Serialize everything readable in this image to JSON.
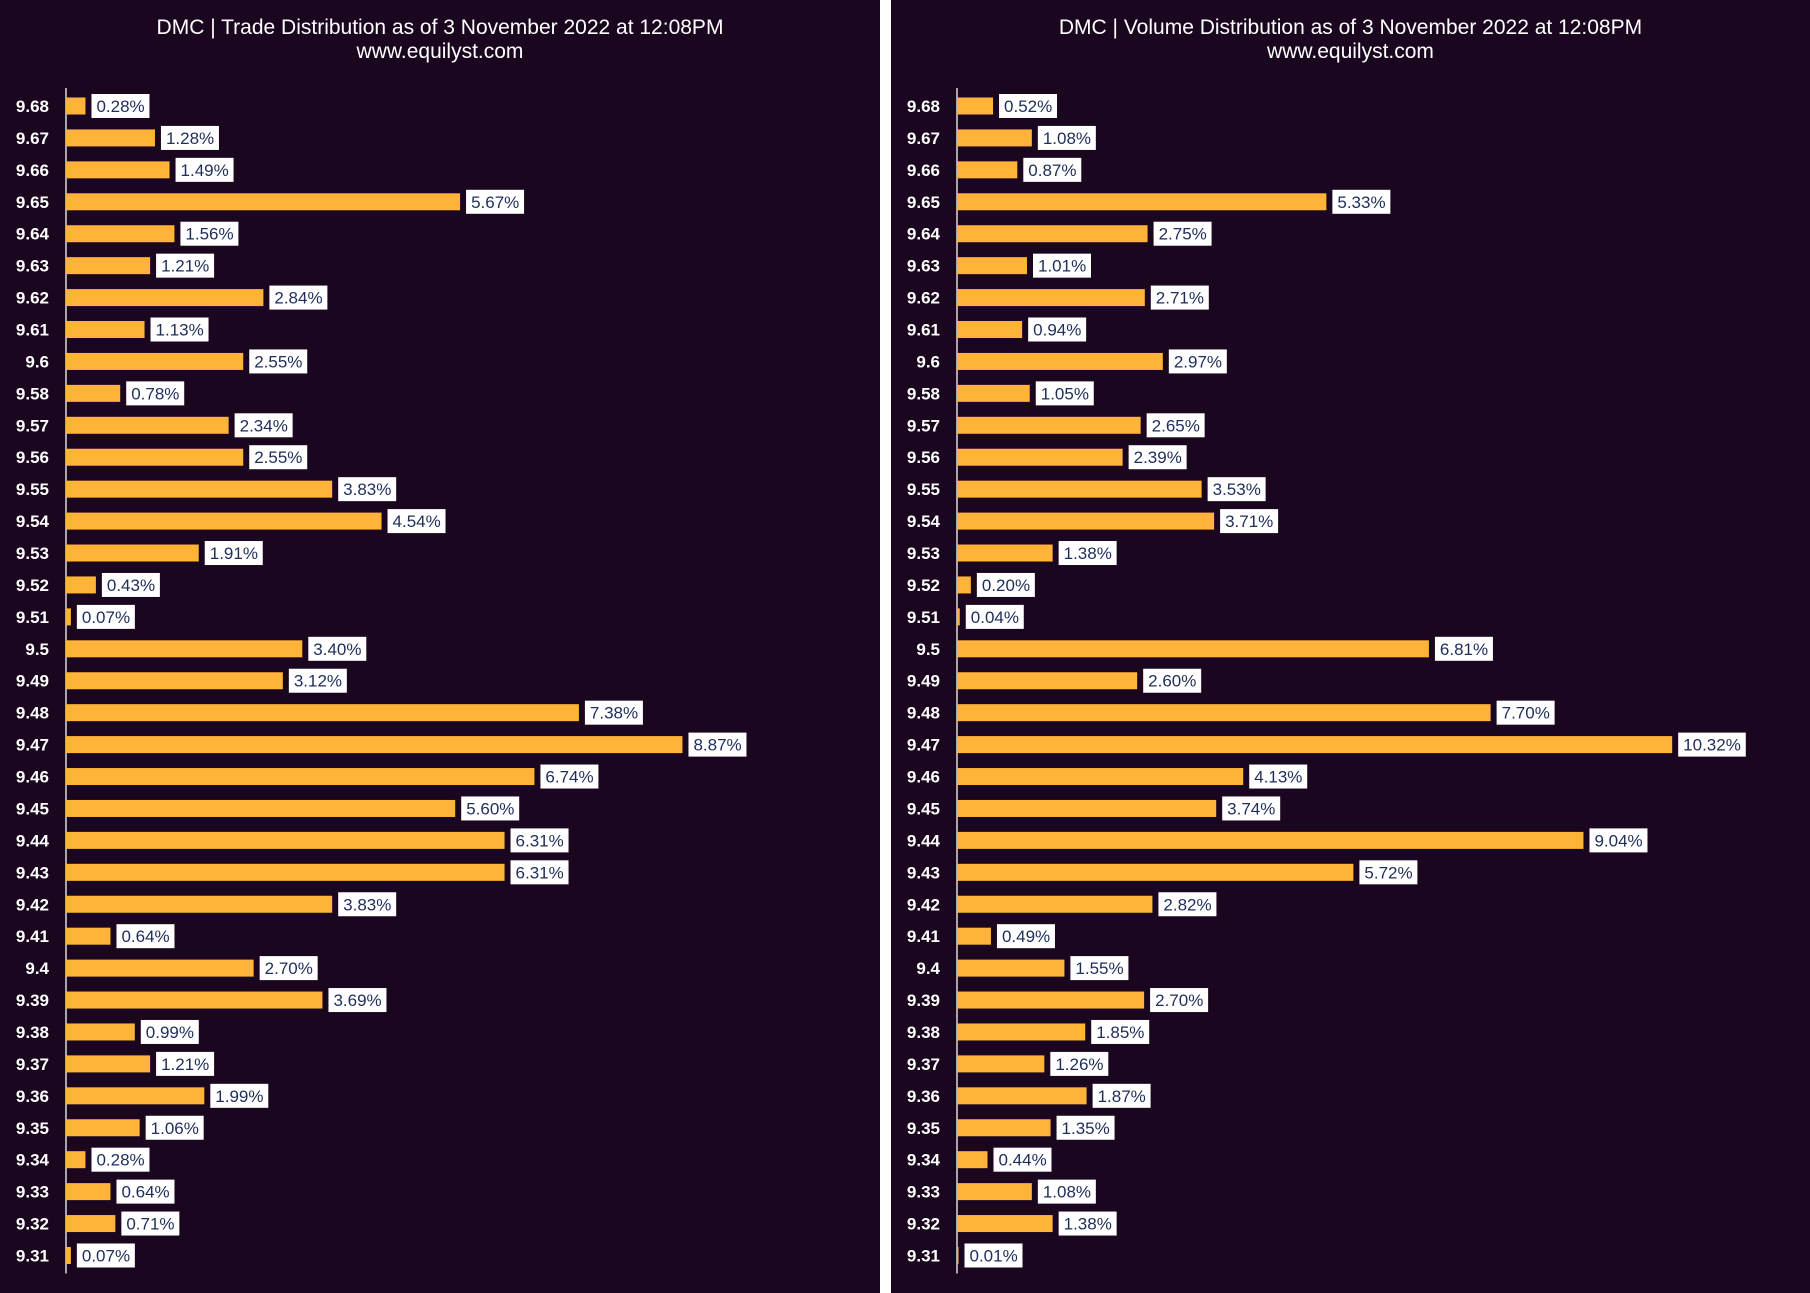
{
  "colors": {
    "background": "#1b0620",
    "bar": "#ffb338",
    "axis": "#d9d9d9",
    "label_box": "#ffffff",
    "label_text": "#1f2d5a",
    "title_text": "#ffffff"
  },
  "chart_data": [
    {
      "type": "bar",
      "orientation": "horizontal",
      "title": "DMC | Trade Distribution as of 3 November 2022 at 12:08PM",
      "subtitle": "www.equilyst.com",
      "xlim": [
        0,
        10
      ],
      "categories": [
        "9.68",
        "9.67",
        "9.66",
        "9.65",
        "9.64",
        "9.63",
        "9.62",
        "9.61",
        "9.6",
        "9.58",
        "9.57",
        "9.56",
        "9.55",
        "9.54",
        "9.53",
        "9.52",
        "9.51",
        "9.5",
        "9.49",
        "9.48",
        "9.47",
        "9.46",
        "9.45",
        "9.44",
        "9.43",
        "9.42",
        "9.41",
        "9.4",
        "9.39",
        "9.38",
        "9.37",
        "9.36",
        "9.35",
        "9.34",
        "9.33",
        "9.32",
        "9.31"
      ],
      "values": [
        0.28,
        1.28,
        1.49,
        5.67,
        1.56,
        1.21,
        2.84,
        1.13,
        2.55,
        0.78,
        2.34,
        2.55,
        3.83,
        4.54,
        1.91,
        0.43,
        0.07,
        3.4,
        3.12,
        7.38,
        8.87,
        6.74,
        5.6,
        6.31,
        6.31,
        3.83,
        0.64,
        2.7,
        3.69,
        0.99,
        1.21,
        1.99,
        1.06,
        0.28,
        0.64,
        0.71,
        0.07
      ],
      "labels": [
        "0.28%",
        "1.28%",
        "1.49%",
        "5.67%",
        "1.56%",
        "1.21%",
        "2.84%",
        "1.13%",
        "2.55%",
        "0.78%",
        "2.34%",
        "2.55%",
        "3.83%",
        "4.54%",
        "1.91%",
        "0.43%",
        "0.07%",
        "3.40%",
        "3.12%",
        "7.38%",
        "8.87%",
        "6.74%",
        "5.60%",
        "6.31%",
        "6.31%",
        "3.83%",
        "0.64%",
        "2.70%",
        "3.69%",
        "0.99%",
        "1.21%",
        "1.99%",
        "1.06%",
        "0.28%",
        "0.64%",
        "0.71%",
        "0.07%"
      ]
    },
    {
      "type": "bar",
      "orientation": "horizontal",
      "title": "DMC | Volume Distribution as of 3 November 2022 at 12:08PM",
      "subtitle": "www.equilyst.com",
      "xlim": [
        0,
        11
      ],
      "categories": [
        "9.68",
        "9.67",
        "9.66",
        "9.65",
        "9.64",
        "9.63",
        "9.62",
        "9.61",
        "9.6",
        "9.58",
        "9.57",
        "9.56",
        "9.55",
        "9.54",
        "9.53",
        "9.52",
        "9.51",
        "9.5",
        "9.49",
        "9.48",
        "9.47",
        "9.46",
        "9.45",
        "9.44",
        "9.43",
        "9.42",
        "9.41",
        "9.4",
        "9.39",
        "9.38",
        "9.37",
        "9.36",
        "9.35",
        "9.34",
        "9.33",
        "9.32",
        "9.31"
      ],
      "values": [
        0.52,
        1.08,
        0.87,
        5.33,
        2.75,
        1.01,
        2.71,
        0.94,
        2.97,
        1.05,
        2.65,
        2.39,
        3.53,
        3.71,
        1.38,
        0.2,
        0.04,
        6.81,
        2.6,
        7.7,
        10.32,
        4.13,
        3.74,
        9.04,
        5.72,
        2.82,
        0.49,
        1.55,
        2.7,
        1.85,
        1.26,
        1.87,
        1.35,
        0.44,
        1.08,
        1.38,
        0.01
      ],
      "labels": [
        "0.52%",
        "1.08%",
        "0.87%",
        "5.33%",
        "2.75%",
        "1.01%",
        "2.71%",
        "0.94%",
        "2.97%",
        "1.05%",
        "2.65%",
        "2.39%",
        "3.53%",
        "3.71%",
        "1.38%",
        "0.20%",
        "0.04%",
        "6.81%",
        "2.60%",
        "7.70%",
        "10.32%",
        "4.13%",
        "3.74%",
        "9.04%",
        "5.72%",
        "2.82%",
        "0.49%",
        "1.55%",
        "2.70%",
        "1.85%",
        "1.26%",
        "1.87%",
        "1.35%",
        "0.44%",
        "1.08%",
        "1.38%",
        "0.01%"
      ]
    }
  ]
}
